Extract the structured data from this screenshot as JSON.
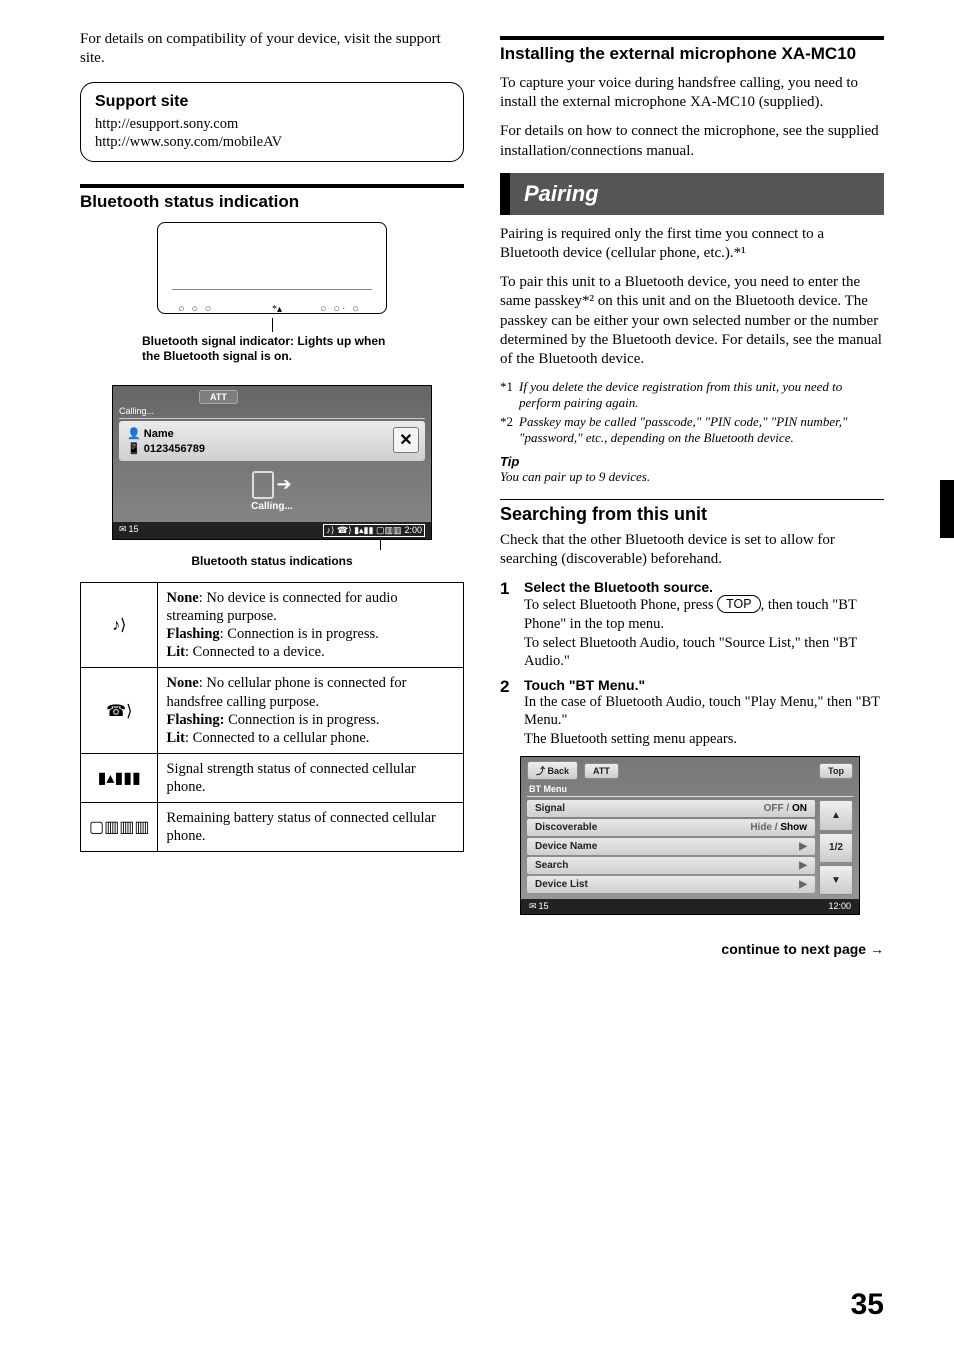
{
  "left": {
    "intro": "For details on compatibility of your device, visit the support site.",
    "support": {
      "title": "Support site",
      "line1": "http://esupport.sony.com",
      "line2": "http://www.sony.com/mobileAV"
    },
    "bt_heading": "Bluetooth status indication",
    "signal_caption": "Bluetooth signal indicator: Lights up when the Bluetooth signal is on.",
    "ui": {
      "calling_top": "Calling...",
      "att": "ATT",
      "name_label": "Name",
      "number": "0123456789",
      "x": "✕",
      "calling_center": "Calling...",
      "msg_count": "15",
      "time": "2:00"
    },
    "status_caption": "Bluetooth status indications",
    "table": {
      "rows": [
        {
          "icon": "♪⟩",
          "html": "<span class=\"b\">None</span>: No device is connected for audio streaming purpose.<br><span class=\"b\">Flashing</span>: Connection is in progress.<br><span class=\"b\">Lit</span>: Connected to a device."
        },
        {
          "icon": "☎⟩",
          "html": "<span class=\"b\">None</span>: No cellular phone is connected for handsfree calling purpose.<br><span class=\"b\">Flashing:</span> Connection is in progress.<br><span class=\"b\">Lit</span>: Connected to a cellular phone."
        },
        {
          "icon": "▮▴▮▮▮",
          "html": "Signal strength status of connected cellular phone."
        },
        {
          "icon": "▢▥▥▥",
          "html": "Remaining battery status of connected cellular phone."
        }
      ]
    }
  },
  "right": {
    "mic_heading": "Installing the external microphone XA-MC10",
    "mic_p1": "To capture your voice during handsfree calling, you need to install the external microphone XA-MC10 (supplied).",
    "mic_p2": "For details on how to connect the microphone, see the supplied installation/connections manual.",
    "banner": "Pairing",
    "pair_p1": "Pairing is required only the first time you connect to a Bluetooth device (cellular phone, etc.).*¹",
    "pair_p2": "To pair this unit to a Bluetooth device, you need to enter the same passkey*² on this unit and on the Bluetooth device. The passkey can be either your own selected number or the number determined by the Bluetooth device. For details, see the manual of the Bluetooth device.",
    "fn1_m": "*1",
    "fn1": "If you delete the device registration from this unit, you need to perform pairing again.",
    "fn2_m": "*2",
    "fn2": "Passkey may be called \"passcode,\" \"PIN code,\" \"PIN number,\" \"password,\" etc., depending on the Bluetooth device.",
    "tip_h": "Tip",
    "tip_b": "You can pair up to 9 devices.",
    "search_h": "Searching from this unit",
    "search_p": "Check that the other Bluetooth device is set to allow for searching (discoverable) beforehand.",
    "step1_n": "1",
    "step1_h": "Select the Bluetooth source.",
    "step1_b1a": "To select Bluetooth Phone, press ",
    "step1_top": "TOP",
    "step1_b1b": ", then touch \"BT Phone\" in the top menu.",
    "step1_b2": "To select Bluetooth Audio, touch \"Source List,\" then \"BT Audio.\"",
    "step2_n": "2",
    "step2_h": "Touch \"BT Menu.\"",
    "step2_b1": "In the case of Bluetooth Audio, touch \"Play Menu,\" then \"BT Menu.\"",
    "step2_b2": "The Bluetooth setting menu appears.",
    "btmenu": {
      "back": "Back",
      "att": "ATT",
      "top": "Top",
      "crumb": "BT Menu",
      "rows": [
        {
          "k": "Signal",
          "v": "OFF / <span class=\"on\">ON</span>",
          "arrow": ""
        },
        {
          "k": "Discoverable",
          "v": "Hide / <span class=\"on\">Show</span>",
          "arrow": ""
        },
        {
          "k": "Device Name",
          "v": "",
          "arrow": "▶"
        },
        {
          "k": "Search",
          "v": "",
          "arrow": "▶"
        },
        {
          "k": "Device List",
          "v": "",
          "arrow": "▶"
        }
      ],
      "page": "1/2",
      "msg": "15",
      "time": "12:00"
    },
    "continue": "continue to next page →"
  },
  "page": "35"
}
